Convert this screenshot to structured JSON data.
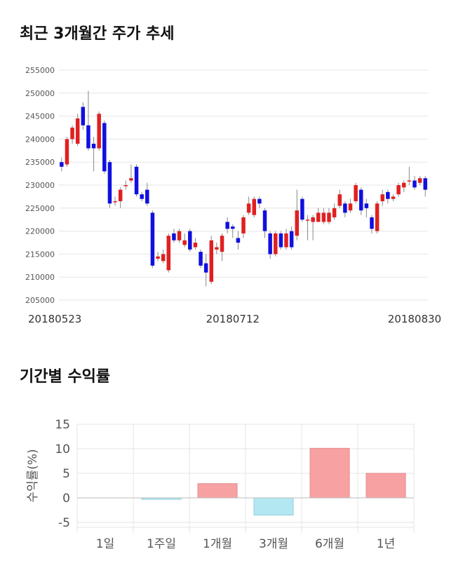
{
  "sections": {
    "stock_title": "최근 3개월간 주가 추세",
    "returns_title": "기간별 수익률"
  },
  "colors": {
    "up": "#e02020",
    "down": "#1010e0",
    "positive_bar": "#f7a1a3",
    "negative_bar": "#b3e8f2",
    "grid": "#e6e6e6"
  },
  "chart_data": [
    {
      "type": "candlestick",
      "title": "최근 3개월간 주가 추세",
      "ylim": [
        205000,
        255000
      ],
      "yticks": [
        "255000",
        "250000",
        "245000",
        "240000",
        "235000",
        "230000",
        "225000",
        "220000",
        "215000",
        "210000",
        "205000"
      ],
      "xtick_labels": [
        {
          "index": 0,
          "label": "20180523"
        },
        {
          "index": 32,
          "label": "20180712"
        },
        {
          "index": 66,
          "label": "20180830"
        }
      ],
      "grid": true,
      "candles": [
        [
          235000,
          234000,
          236000,
          233000
        ],
        [
          234500,
          240000,
          240500,
          234000
        ],
        [
          240000,
          242500,
          243000,
          239000
        ],
        [
          239000,
          244500,
          245500,
          238500
        ],
        [
          247000,
          243000,
          248000,
          242000
        ],
        [
          243000,
          238000,
          250500,
          237500
        ],
        [
          239000,
          238000,
          240500,
          233000
        ],
        [
          238000,
          245500,
          246000,
          237500
        ],
        [
          243500,
          233000,
          244000,
          232500
        ],
        [
          235000,
          226000,
          235500,
          225000
        ],
        [
          226500,
          226500,
          227500,
          225500
        ],
        [
          226500,
          229000,
          229500,
          225000
        ],
        [
          230000,
          230000,
          231000,
          229000
        ],
        [
          231000,
          231500,
          234500,
          230500
        ],
        [
          234000,
          228000,
          234500,
          227500
        ],
        [
          228000,
          227000,
          228500,
          226500
        ],
        [
          229000,
          226000,
          230500,
          225500
        ],
        [
          224000,
          212500,
          224500,
          212000
        ],
        [
          214000,
          214500,
          215500,
          213500
        ],
        [
          213500,
          215000,
          216000,
          213000
        ],
        [
          211500,
          219000,
          219500,
          211000
        ],
        [
          219500,
          218000,
          220500,
          217500
        ],
        [
          218000,
          220000,
          220500,
          217500
        ],
        [
          217000,
          218000,
          219500,
          216500
        ],
        [
          220000,
          216000,
          220500,
          215500
        ],
        [
          216500,
          217500,
          218500,
          216000
        ],
        [
          215500,
          212500,
          216000,
          212000
        ],
        [
          213000,
          211000,
          215000,
          208000
        ],
        [
          209000,
          218000,
          219000,
          208500
        ],
        [
          216000,
          216500,
          217500,
          215000
        ],
        [
          215500,
          219000,
          219500,
          213500
        ],
        [
          222000,
          220500,
          223000,
          219500
        ],
        [
          221000,
          220500,
          221500,
          218500
        ],
        [
          218500,
          217500,
          220000,
          216000
        ],
        [
          219500,
          223000,
          223500,
          218500
        ],
        [
          224000,
          226000,
          227500,
          223500
        ],
        [
          223500,
          227000,
          227500,
          223000
        ],
        [
          227000,
          226000,
          227500,
          225000
        ],
        [
          224500,
          220000,
          225000,
          218500
        ],
        [
          219500,
          215000,
          220000,
          214000
        ],
        [
          215000,
          219500,
          220000,
          214500
        ],
        [
          219500,
          216500,
          220000,
          216000
        ],
        [
          216500,
          219500,
          220500,
          216000
        ],
        [
          220000,
          216500,
          221000,
          216000
        ],
        [
          219000,
          224500,
          229000,
          218000
        ],
        [
          227000,
          222500,
          227500,
          222000
        ],
        [
          222500,
          222500,
          223500,
          218000
        ],
        [
          222000,
          223000,
          223500,
          218000
        ],
        [
          222000,
          224000,
          225000,
          222000
        ],
        [
          222000,
          224000,
          225000,
          221500
        ],
        [
          222000,
          224000,
          225000,
          221500
        ],
        [
          223000,
          225000,
          226000,
          222500
        ],
        [
          225500,
          228000,
          229000,
          225000
        ],
        [
          226000,
          224000,
          226500,
          223000
        ],
        [
          224500,
          226000,
          227000,
          224000
        ],
        [
          226500,
          230000,
          230500,
          226000
        ],
        [
          229000,
          224500,
          229500,
          223500
        ],
        [
          226000,
          225000,
          227000,
          223000
        ],
        [
          223000,
          220500,
          223500,
          219500
        ],
        [
          220000,
          226000,
          226500,
          219500
        ],
        [
          226500,
          228000,
          229000,
          225500
        ],
        [
          228500,
          227000,
          229000,
          226000
        ],
        [
          227000,
          227500,
          228000,
          226500
        ],
        [
          228000,
          230000,
          230500,
          227500
        ],
        [
          229500,
          230500,
          231000,
          228500
        ],
        [
          231000,
          231000,
          234000,
          230000
        ],
        [
          231000,
          229500,
          232000,
          229000
        ],
        [
          230500,
          231500,
          232000,
          230000
        ],
        [
          231500,
          229000,
          232000,
          227500
        ]
      ]
    },
    {
      "type": "bar",
      "title": "기간별 수익률",
      "ylabel": "수익률(%)",
      "ylim": [
        -6,
        15
      ],
      "yticks": [
        15,
        10,
        5,
        0,
        -5
      ],
      "categories": [
        "1일",
        "1주일",
        "1개월",
        "3개월",
        "6개월",
        "1년"
      ],
      "values": [
        0,
        -0.3,
        2.9,
        -3.5,
        10.1,
        5.0
      ],
      "grid": true
    }
  ]
}
